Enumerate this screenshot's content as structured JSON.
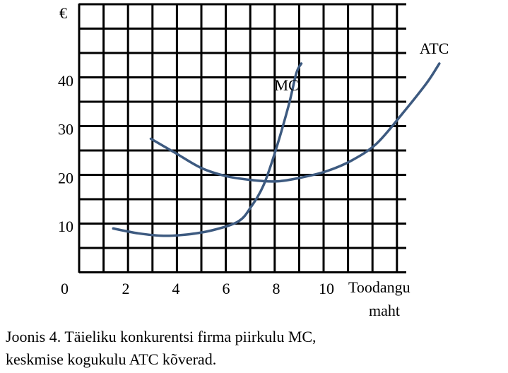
{
  "chart_data": {
    "type": "line",
    "ylabel": "€",
    "xlabel_lines": [
      "Toodangu",
      "maht"
    ],
    "origin_label": "0",
    "x_ticks": [
      2,
      4,
      6,
      8,
      10
    ],
    "y_ticks": [
      10,
      20,
      30,
      40
    ],
    "xlim": [
      0,
      14
    ],
    "ylim": [
      0,
      55
    ],
    "grid": true,
    "colors": {
      "curves": "#3d5a80",
      "grid": "#000000"
    },
    "series": [
      {
        "name": "MC",
        "points": [
          [
            1.5,
            9.5
          ],
          [
            2.5,
            8.5
          ],
          [
            3.5,
            8.0
          ],
          [
            4.5,
            8.3
          ],
          [
            5.5,
            9.2
          ],
          [
            6.5,
            11.0
          ],
          [
            7.0,
            14.0
          ],
          [
            7.5,
            18.5
          ],
          [
            8.0,
            26.0
          ],
          [
            8.5,
            35.0
          ],
          [
            8.8,
            41.5
          ],
          [
            9.0,
            43.5
          ]
        ]
      },
      {
        "name": "ATC",
        "points": [
          [
            3.0,
            28.0
          ],
          [
            4.0,
            25.0
          ],
          [
            5.0,
            22.0
          ],
          [
            6.0,
            20.3
          ],
          [
            7.0,
            19.5
          ],
          [
            8.0,
            19.2
          ],
          [
            9.0,
            20.0
          ],
          [
            10.0,
            21.3
          ],
          [
            11.0,
            23.5
          ],
          [
            12.0,
            27.0
          ],
          [
            13.0,
            33.0
          ],
          [
            14.0,
            39.5
          ],
          [
            14.5,
            43.5
          ]
        ]
      }
    ]
  },
  "caption": {
    "line1": "Joonis 4. Täieliku konkurentsi firma piirkulu MC,",
    "line2": "keskmise kogukulu ATC kõverad."
  }
}
